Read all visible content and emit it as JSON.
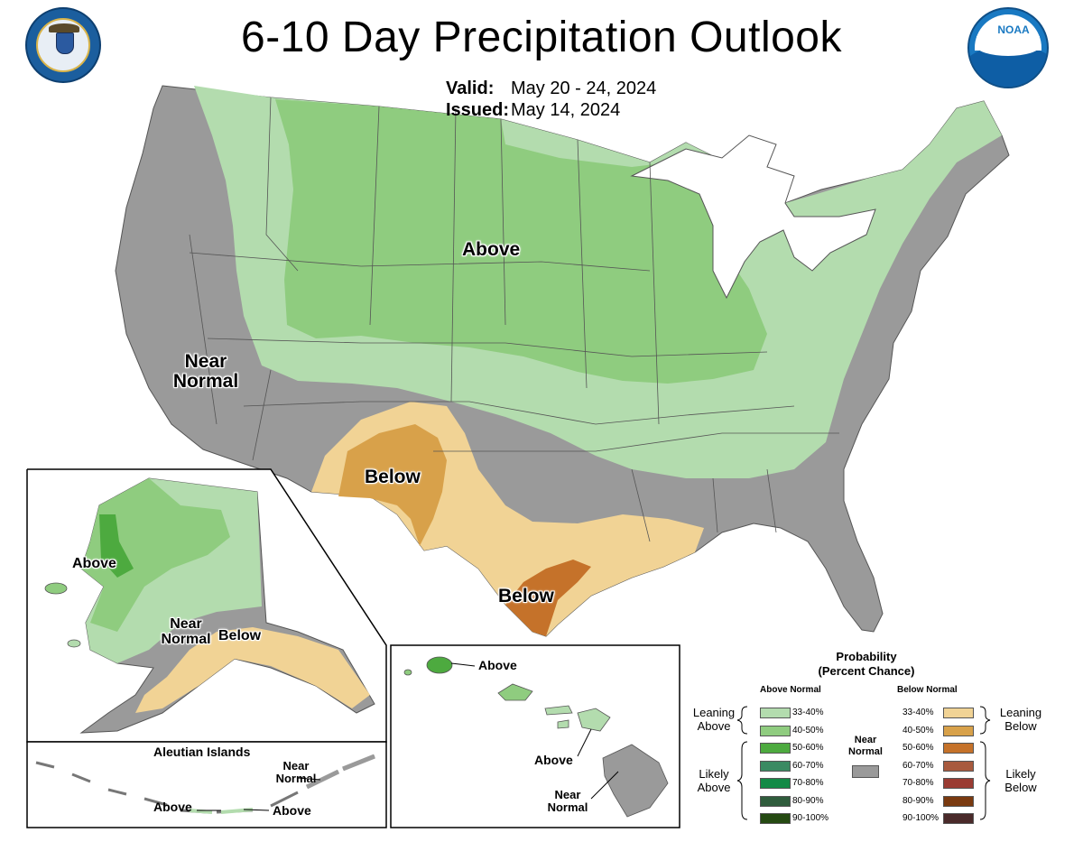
{
  "header": {
    "title": "6-10 Day Precipitation Outlook",
    "valid_label": "Valid:",
    "valid_value": "May 20 - 24, 2024",
    "issued_label": "Issued:",
    "issued_value": "May 14, 2024"
  },
  "logos": {
    "left": "commerce-seal-icon",
    "right": "noaa-logo-icon",
    "noaa_text": "NOAA"
  },
  "colors": {
    "near_normal": "#9a9a9a",
    "above_33_40": "#b3dcae",
    "above_40_50": "#8fcc7f",
    "above_50_60": "#4daa3f",
    "below_33_40": "#f1d395",
    "below_40_50": "#d8a14a",
    "below_50_60": "#c5722a"
  },
  "map_labels": {
    "conus_above": "Above",
    "conus_near_line1": "Near",
    "conus_near_line2": "Normal",
    "conus_below_sw": "Below",
    "conus_below_tx": "Below",
    "ak_above": "Above",
    "ak_near_line1": "Near",
    "ak_near_line2": "Normal",
    "ak_below": "Below",
    "aleutian_title": "Aleutian Islands",
    "aleutian_near_line1": "Near",
    "aleutian_near_line2": "Normal",
    "aleutian_above_a": "Above",
    "aleutian_above_b": "Above",
    "hi_above_kauai": "Above",
    "hi_above_maui": "Above",
    "hi_near_line1": "Near",
    "hi_near_line2": "Normal"
  },
  "legend": {
    "title_line1": "Probability",
    "title_line2": "(Percent Chance)",
    "above_header": "Above Normal",
    "below_header": "Below Normal",
    "near_line1": "Near",
    "near_line2": "Normal",
    "leaning_above_1": "Leaning",
    "leaning_above_2": "Above",
    "likely_above_1": "Likely",
    "likely_above_2": "Above",
    "leaning_below_1": "Leaning",
    "leaning_below_2": "Below",
    "likely_below_1": "Likely",
    "likely_below_2": "Below",
    "above_items": [
      {
        "label": "33-40%",
        "color": "#b3dcae"
      },
      {
        "label": "40-50%",
        "color": "#8fcc7f"
      },
      {
        "label": "50-60%",
        "color": "#4daa3f"
      },
      {
        "label": "60-70%",
        "color": "#3a8a62"
      },
      {
        "label": "70-80%",
        "color": "#138a46"
      },
      {
        "label": "80-90%",
        "color": "#2f5c3c"
      },
      {
        "label": "90-100%",
        "color": "#254a12"
      }
    ],
    "below_items": [
      {
        "label": "33-40%",
        "color": "#f1d395"
      },
      {
        "label": "40-50%",
        "color": "#d8a14a"
      },
      {
        "label": "50-60%",
        "color": "#c5722a"
      },
      {
        "label": "60-70%",
        "color": "#a85a3e"
      },
      {
        "label": "70-80%",
        "color": "#9a3b32"
      },
      {
        "label": "80-90%",
        "color": "#7a3a10"
      },
      {
        "label": "90-100%",
        "color": "#4a2a2a"
      }
    ]
  }
}
